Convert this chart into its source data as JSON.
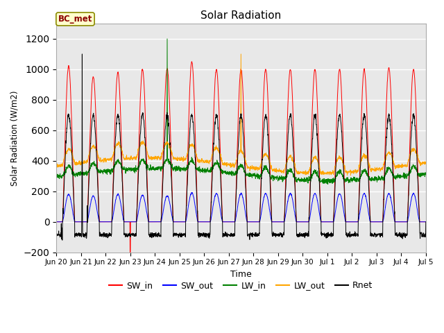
{
  "title": "Solar Radiation",
  "xlabel": "Time",
  "ylabel": "Solar Radiation (W/m2)",
  "ylim": [
    -200,
    1300
  ],
  "yticks": [
    -200,
    0,
    200,
    400,
    600,
    800,
    1000,
    1200
  ],
  "legend_labels": [
    "SW_in",
    "SW_out",
    "LW_in",
    "LW_out",
    "Rnet"
  ],
  "legend_colors": [
    "red",
    "blue",
    "green",
    "orange",
    "black"
  ],
  "station_label": "BC_met",
  "plot_bg_color": "#e8e8e8",
  "xtick_labels": [
    "Jun 20",
    "Jun 21",
    "Jun 22",
    "Jun 23",
    "Jun 24",
    "Jun 25",
    "Jun 26",
    "Jun 27",
    "Jun 28",
    "Jun 29",
    "Jun 30",
    "Jul 1",
    "Jul 2",
    "Jul 3",
    "Jul 4",
    "Jul 5"
  ],
  "n_days": 15
}
